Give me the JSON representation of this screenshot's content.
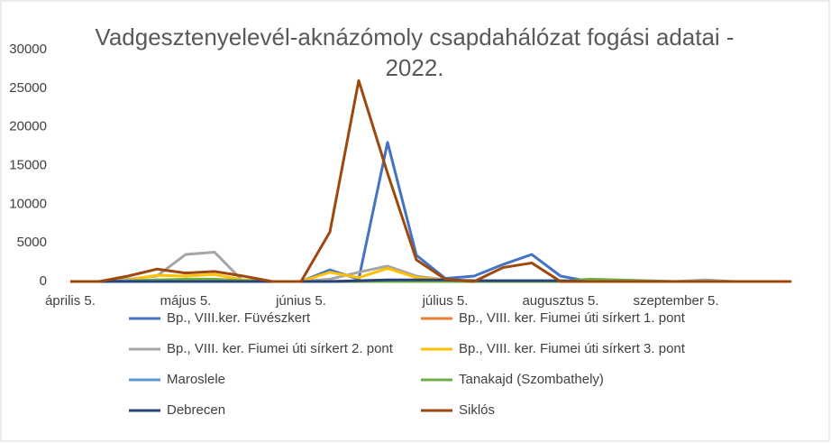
{
  "chart_data": {
    "type": "line",
    "title": "Vadgesztenyelevél-aknázómoly csapdahálózat fogási adatai - 2022.",
    "categories": [
      "április 5.",
      null,
      null,
      null,
      "május 5.",
      null,
      null,
      null,
      "június 5.",
      null,
      null,
      null,
      null,
      "július 5.",
      null,
      null,
      null,
      "augusztus 5.",
      null,
      null,
      null,
      "szeptember 5.",
      null,
      null,
      null,
      null
    ],
    "series": [
      {
        "name": "Bp., VIII.ker. Füvészkert",
        "color": "#4472c4",
        "values": [
          0,
          0,
          0,
          0,
          0,
          0,
          0,
          0,
          0,
          1500,
          300,
          18000,
          3400,
          400,
          700,
          2200,
          3500,
          700,
          0,
          0,
          0,
          0,
          0,
          0,
          0,
          0
        ]
      },
      {
        "name": "Bp., VIII. ker. Fiumei úti sírkert 1. pont",
        "color": "#ed7d31",
        "values": [
          0,
          0,
          0,
          0,
          0,
          0,
          0,
          0,
          0,
          0,
          100,
          100,
          0,
          0,
          0,
          0,
          0,
          0,
          0,
          0,
          0,
          0,
          0,
          0,
          0,
          0
        ]
      },
      {
        "name": "Bp., VIII. ker. Fiumei úti sírkert 2. pont",
        "color": "#a5a5a5",
        "values": [
          0,
          0,
          300,
          700,
          3500,
          3800,
          0,
          0,
          0,
          300,
          1200,
          2000,
          700,
          200,
          0,
          0,
          0,
          0,
          0,
          0,
          0,
          0,
          200,
          0,
          0,
          0
        ]
      },
      {
        "name": "Bp., VIII. ker. Fiumei úti sírkert 3. pont",
        "color": "#ffc000",
        "values": [
          0,
          0,
          200,
          800,
          700,
          900,
          200,
          0,
          0,
          1200,
          500,
          1700,
          500,
          200,
          0,
          0,
          0,
          0,
          0,
          0,
          0,
          0,
          0,
          0,
          0,
          0
        ]
      },
      {
        "name": "Maroslele",
        "color": "#5b9bd5",
        "values": [
          0,
          0,
          100,
          200,
          200,
          200,
          100,
          0,
          0,
          0,
          0,
          0,
          0,
          0,
          0,
          0,
          0,
          0,
          0,
          0,
          0,
          0,
          0,
          0,
          0,
          0
        ]
      },
      {
        "name": "Tanakajd (Szombathely)",
        "color": "#70ad47",
        "values": [
          0,
          0,
          0,
          200,
          300,
          300,
          100,
          0,
          0,
          0,
          0,
          0,
          0,
          0,
          0,
          0,
          0,
          0,
          300,
          200,
          100,
          0,
          0,
          0,
          0,
          0
        ]
      },
      {
        "name": "Debrecen",
        "color": "#264478",
        "values": [
          0,
          0,
          0,
          0,
          0,
          0,
          0,
          0,
          0,
          0,
          100,
          200,
          200,
          200,
          100,
          100,
          100,
          100,
          0,
          0,
          0,
          0,
          0,
          0,
          0,
          0
        ]
      },
      {
        "name": "Siklós",
        "color": "#9e480e",
        "values": [
          0,
          0,
          700,
          1600,
          1100,
          1300,
          700,
          0,
          0,
          6400,
          26000,
          14000,
          2800,
          300,
          0,
          1800,
          2400,
          0,
          0,
          0,
          0,
          0,
          0,
          0,
          0,
          0
        ]
      }
    ],
    "ylim": [
      0,
      30000
    ],
    "yticks": [
      0,
      5000,
      10000,
      15000,
      20000,
      25000,
      30000
    ],
    "grid": false,
    "legend": "bottom"
  }
}
